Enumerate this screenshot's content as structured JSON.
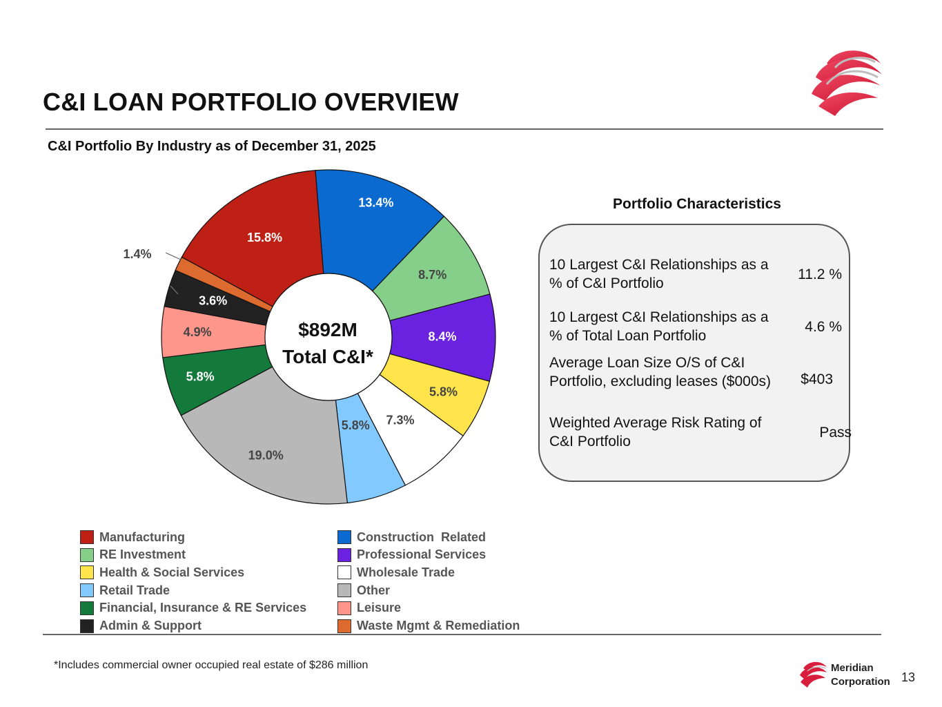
{
  "header": {
    "title": "C&I LOAN PORTFOLIO OVERVIEW",
    "subtitle": "C&I Portfolio By Industry as of December 31, 2025"
  },
  "chart_data": {
    "type": "pie",
    "variant": "donut",
    "title": "C&I Portfolio By Industry as of December 31, 2025",
    "center_label": [
      "$892M",
      "Total C&I*"
    ],
    "slices": [
      {
        "name": "Construction  Related",
        "value": 13.4,
        "label": "13.4%",
        "color": "#0a6ad0",
        "label_color": "#ffffff"
      },
      {
        "name": "RE Investment",
        "value": 8.7,
        "label": "8.7%",
        "color": "#86cf8a",
        "label_color": "#444444"
      },
      {
        "name": "Professional Services",
        "value": 8.4,
        "label": "8.4%",
        "color": "#6a22e0",
        "label_color": "#ffffff"
      },
      {
        "name": "Health & Social Services",
        "value": 5.8,
        "label": "5.8%",
        "color": "#ffe44c",
        "label_color": "#444444"
      },
      {
        "name": "Wholesale Trade",
        "value": 7.3,
        "label": "7.3%",
        "color": "#ffffff",
        "label_color": "#444444"
      },
      {
        "name": "Retail Trade",
        "value": 5.8,
        "label": "5.8%",
        "color": "#82c9ff",
        "label_color": "#444444"
      },
      {
        "name": "Other",
        "value": 19.0,
        "label": "19.0%",
        "color": "#b8b8b8",
        "label_color": "#444444"
      },
      {
        "name": "Financial, Insurance & RE Services",
        "value": 5.8,
        "label": "5.8%",
        "color": "#147a3c",
        "label_color": "#ffffff"
      },
      {
        "name": "Leisure",
        "value": 4.9,
        "label": "4.9%",
        "color": "#ff968c",
        "label_color": "#444444"
      },
      {
        "name": "Admin & Support",
        "value": 3.6,
        "label": "3.6%",
        "color": "#222222",
        "label_color": "#ffffff"
      },
      {
        "name": "Waste Mgmt & Remediation",
        "value": 1.4,
        "label": "1.4%",
        "color": "#dd6a2e",
        "label_color": "#444444"
      },
      {
        "name": "Manufacturing",
        "value": 15.8,
        "label": "15.8%",
        "color": "#be2015",
        "label_color": "#ffffff"
      }
    ],
    "legend": [
      {
        "name": "Manufacturing",
        "color": "#be2015"
      },
      {
        "name": "Construction  Related",
        "color": "#0a6ad0"
      },
      {
        "name": "RE Investment",
        "color": "#86cf8a"
      },
      {
        "name": "Professional Services",
        "color": "#6a22e0"
      },
      {
        "name": "Health & Social Services",
        "color": "#ffe44c"
      },
      {
        "name": "Wholesale Trade",
        "color": "#ffffff"
      },
      {
        "name": "Retail Trade",
        "color": "#82c9ff"
      },
      {
        "name": "Other",
        "color": "#b8b8b8"
      },
      {
        "name": "Financial, Insurance & RE Services",
        "color": "#147a3c"
      },
      {
        "name": "Leisure",
        "color": "#ff968c"
      },
      {
        "name": "Admin & Support",
        "color": "#222222"
      },
      {
        "name": "Waste Mgmt & Remediation",
        "color": "#dd6a2e"
      }
    ],
    "legend_placement": "bottom"
  },
  "portfolio_characteristics": {
    "title": "Portfolio Characteristics",
    "rows": [
      {
        "label": "10 Largest C&I Relationships as a % of C&I Portfolio",
        "value": "11.2 %"
      },
      {
        "label": "10 Largest C&I Relationships as a % of Total Loan Portfolio",
        "value": "4.6 %"
      },
      {
        "label": "Average Loan Size O/S of C&I Portfolio, excluding leases ($000s)",
        "value": "$403"
      },
      {
        "label": "Weighted Average Risk Rating of C&I Portfolio",
        "value": "Pass"
      }
    ]
  },
  "footer": {
    "footnote": "*Includes commercial owner occupied real estate of $286 million",
    "brand_line1": "Meridian",
    "brand_line2": "Corporation",
    "page_number": "13"
  },
  "colors": {
    "brand": "#d81e3d",
    "rule": "#666666",
    "panel_bg": "#f2f2f2"
  }
}
